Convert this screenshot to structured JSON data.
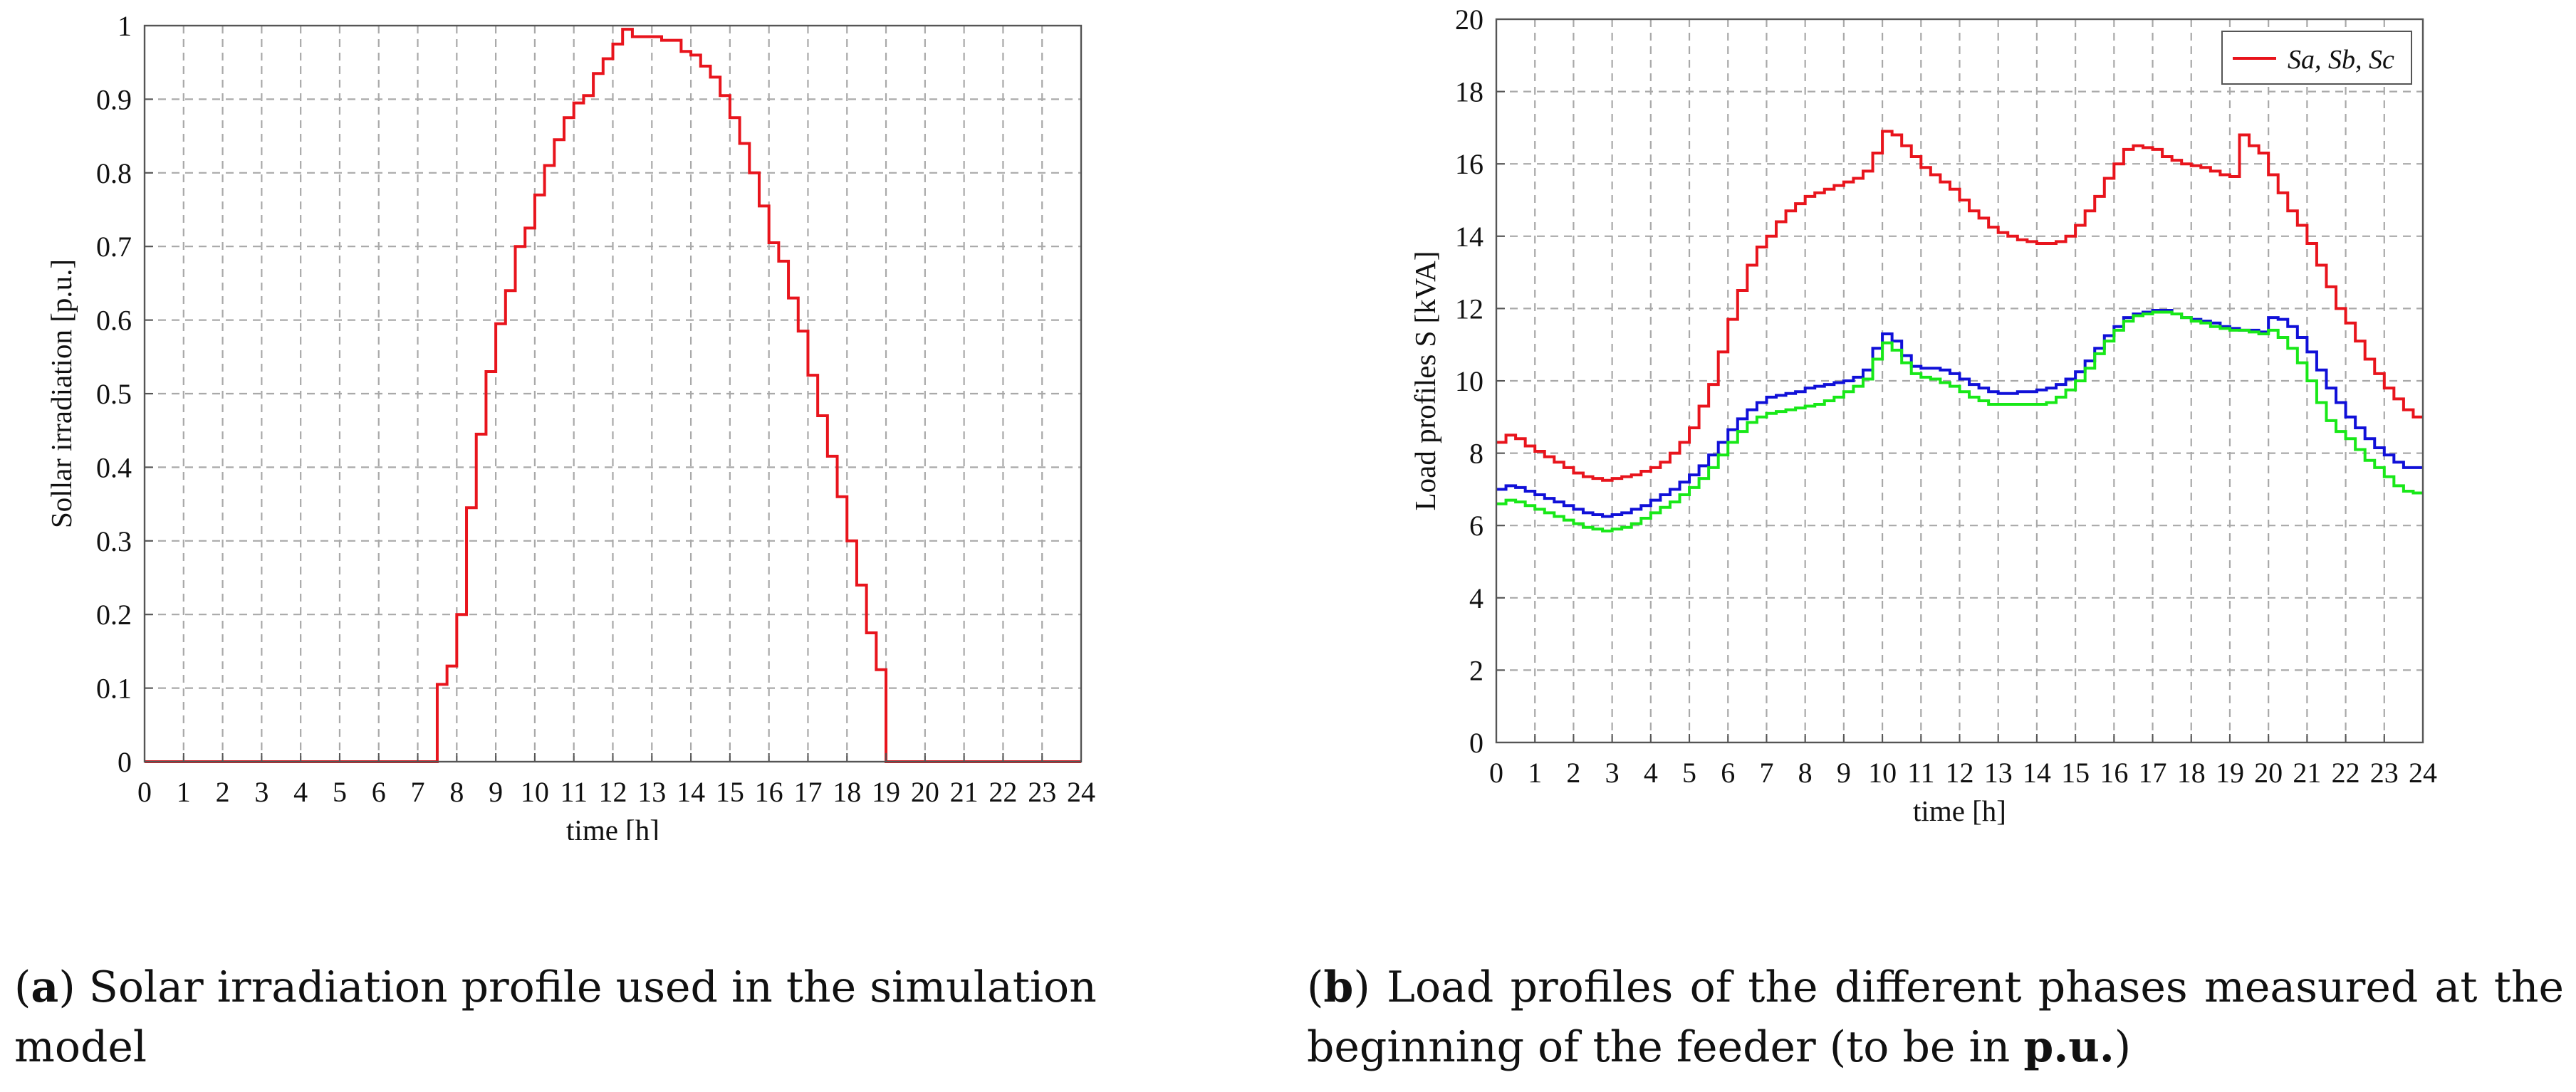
{
  "chart_data": [
    {
      "type": "line",
      "step": true,
      "title": "",
      "xlabel": "time [h]",
      "ylabel": "Sollar irradiation [p.u.]",
      "xlim": [
        0,
        24
      ],
      "ylim": [
        0,
        1
      ],
      "grid": true,
      "xticks": [
        "0",
        "1",
        "2",
        "3",
        "4",
        "5",
        "6",
        "7",
        "8",
        "9",
        "10",
        "11",
        "12",
        "13",
        "14",
        "15",
        "16",
        "17",
        "18",
        "19",
        "20",
        "21",
        "22",
        "23",
        "24"
      ],
      "yticks": [
        "0",
        "0.1",
        "0.2",
        "0.3",
        "0.4",
        "0.5",
        "0.6",
        "0.7",
        "0.8",
        "0.9",
        "1"
      ],
      "series": [
        {
          "name": "Solar irradiation",
          "color": "#e8141c",
          "x": [
            0,
            7.5,
            7.75,
            8,
            8.25,
            8.5,
            8.75,
            9,
            9.25,
            9.5,
            9.75,
            10,
            10.25,
            10.5,
            10.75,
            11,
            11.25,
            11.5,
            11.75,
            12,
            12.25,
            12.5,
            12.75,
            13,
            13.25,
            13.5,
            13.75,
            14,
            14.25,
            14.5,
            14.75,
            15,
            15.25,
            15.5,
            15.75,
            16,
            16.25,
            16.5,
            16.75,
            17,
            17.25,
            17.5,
            17.75,
            18,
            18.25,
            18.5,
            18.75,
            19,
            19.25,
            24
          ],
          "values": [
            0,
            0.105,
            0.13,
            0.2,
            0.345,
            0.445,
            0.53,
            0.595,
            0.64,
            0.7,
            0.725,
            0.77,
            0.81,
            0.845,
            0.875,
            0.895,
            0.905,
            0.935,
            0.955,
            0.975,
            0.995,
            0.985,
            0.985,
            0.985,
            0.98,
            0.98,
            0.965,
            0.96,
            0.945,
            0.93,
            0.905,
            0.875,
            0.84,
            0.8,
            0.755,
            0.705,
            0.68,
            0.63,
            0.585,
            0.525,
            0.47,
            0.415,
            0.36,
            0.3,
            0.24,
            0.175,
            0.125,
            0,
            0,
            0
          ]
        }
      ]
    },
    {
      "type": "line",
      "step": true,
      "title": "",
      "xlabel": "time [h]",
      "ylabel": "Load profiles S [kVA]",
      "xlim": [
        0,
        24
      ],
      "ylim": [
        0,
        20
      ],
      "grid": true,
      "legend_position": "top-right",
      "legend_label": "Sa, Sb, Sc",
      "xticks": [
        "0",
        "1",
        "2",
        "3",
        "4",
        "5",
        "6",
        "7",
        "8",
        "9",
        "10",
        "11",
        "12",
        "13",
        "14",
        "15",
        "16",
        "17",
        "18",
        "19",
        "20",
        "21",
        "22",
        "23",
        "24"
      ],
      "yticks": [
        "0",
        "2",
        "4",
        "6",
        "8",
        "10",
        "12",
        "14",
        "16",
        "18",
        "20"
      ],
      "series": [
        {
          "name": "Sa",
          "color": "#e8141c",
          "x": [
            0,
            0.25,
            0.5,
            0.75,
            1,
            1.25,
            1.5,
            1.75,
            2,
            2.25,
            2.5,
            2.75,
            3,
            3.25,
            3.5,
            3.75,
            4,
            4.25,
            4.5,
            4.75,
            5,
            5.25,
            5.5,
            5.75,
            6,
            6.25,
            6.5,
            6.75,
            7,
            7.25,
            7.5,
            7.75,
            8,
            8.25,
            8.5,
            8.75,
            9,
            9.25,
            9.5,
            9.75,
            10,
            10.25,
            10.5,
            10.75,
            11,
            11.25,
            11.5,
            11.75,
            12,
            12.25,
            12.5,
            12.75,
            13,
            13.25,
            13.5,
            13.75,
            14,
            14.25,
            14.5,
            14.75,
            15,
            15.25,
            15.5,
            15.75,
            16,
            16.25,
            16.5,
            16.75,
            17,
            17.25,
            17.5,
            17.75,
            18,
            18.25,
            18.5,
            18.75,
            19,
            19.25,
            19.5,
            19.75,
            20,
            20.25,
            20.5,
            20.75,
            21,
            21.25,
            21.5,
            21.75,
            22,
            22.25,
            22.5,
            22.75,
            23,
            23.25,
            23.5,
            23.75,
            24
          ],
          "values": [
            8.3,
            8.5,
            8.4,
            8.2,
            8.05,
            7.9,
            7.75,
            7.6,
            7.45,
            7.35,
            7.3,
            7.25,
            7.3,
            7.35,
            7.4,
            7.5,
            7.6,
            7.75,
            8.0,
            8.3,
            8.7,
            9.3,
            9.9,
            10.8,
            11.7,
            12.5,
            13.2,
            13.7,
            14.0,
            14.4,
            14.7,
            14.9,
            15.1,
            15.2,
            15.3,
            15.4,
            15.5,
            15.6,
            15.8,
            16.3,
            16.9,
            16.8,
            16.5,
            16.2,
            15.9,
            15.7,
            15.5,
            15.3,
            15.0,
            14.7,
            14.5,
            14.25,
            14.1,
            14.0,
            13.9,
            13.85,
            13.8,
            13.8,
            13.85,
            14.0,
            14.3,
            14.7,
            15.1,
            15.6,
            16.0,
            16.4,
            16.5,
            16.45,
            16.4,
            16.2,
            16.1,
            16.0,
            15.95,
            15.9,
            15.8,
            15.7,
            15.65,
            16.8,
            16.5,
            16.3,
            15.7,
            15.2,
            14.7,
            14.3,
            13.8,
            13.2,
            12.6,
            12.0,
            11.6,
            11.1,
            10.6,
            10.2,
            9.8,
            9.5,
            9.2,
            9.0,
            9.0
          ]
        },
        {
          "name": "Sb",
          "color": "#1010d8",
          "x": [
            0,
            0.25,
            0.5,
            0.75,
            1,
            1.25,
            1.5,
            1.75,
            2,
            2.25,
            2.5,
            2.75,
            3,
            3.25,
            3.5,
            3.75,
            4,
            4.25,
            4.5,
            4.75,
            5,
            5.25,
            5.5,
            5.75,
            6,
            6.25,
            6.5,
            6.75,
            7,
            7.25,
            7.5,
            7.75,
            8,
            8.25,
            8.5,
            8.75,
            9,
            9.25,
            9.5,
            9.75,
            10,
            10.25,
            10.5,
            10.75,
            11,
            11.25,
            11.5,
            11.75,
            12,
            12.25,
            12.5,
            12.75,
            13,
            13.25,
            13.5,
            13.75,
            14,
            14.25,
            14.5,
            14.75,
            15,
            15.25,
            15.5,
            15.75,
            16,
            16.25,
            16.5,
            16.75,
            17,
            17.25,
            17.5,
            17.75,
            18,
            18.25,
            18.5,
            18.75,
            19,
            19.25,
            19.5,
            19.75,
            20,
            20.25,
            20.5,
            20.75,
            21,
            21.25,
            21.5,
            21.75,
            22,
            22.25,
            22.5,
            22.75,
            23,
            23.25,
            23.5,
            23.75,
            24
          ],
          "values": [
            7.0,
            7.1,
            7.05,
            6.95,
            6.85,
            6.75,
            6.65,
            6.55,
            6.45,
            6.35,
            6.3,
            6.25,
            6.3,
            6.35,
            6.45,
            6.55,
            6.7,
            6.85,
            7.0,
            7.2,
            7.4,
            7.65,
            7.95,
            8.3,
            8.65,
            8.95,
            9.2,
            9.4,
            9.55,
            9.6,
            9.65,
            9.7,
            9.8,
            9.85,
            9.9,
            9.95,
            10.0,
            10.1,
            10.3,
            10.9,
            11.3,
            11.1,
            10.7,
            10.4,
            10.35,
            10.35,
            10.3,
            10.2,
            10.05,
            9.9,
            9.8,
            9.7,
            9.65,
            9.65,
            9.7,
            9.7,
            9.75,
            9.8,
            9.9,
            10.05,
            10.25,
            10.55,
            10.9,
            11.25,
            11.5,
            11.75,
            11.85,
            11.9,
            11.95,
            11.95,
            11.85,
            11.75,
            11.7,
            11.65,
            11.6,
            11.5,
            11.45,
            11.4,
            11.4,
            11.35,
            11.75,
            11.7,
            11.5,
            11.2,
            10.8,
            10.3,
            9.8,
            9.4,
            9.0,
            8.7,
            8.4,
            8.15,
            7.95,
            7.75,
            7.6,
            7.6,
            7.6
          ]
        },
        {
          "name": "Sc",
          "color": "#18e818",
          "x": [
            0,
            0.25,
            0.5,
            0.75,
            1,
            1.25,
            1.5,
            1.75,
            2,
            2.25,
            2.5,
            2.75,
            3,
            3.25,
            3.5,
            3.75,
            4,
            4.25,
            4.5,
            4.75,
            5,
            5.25,
            5.5,
            5.75,
            6,
            6.25,
            6.5,
            6.75,
            7,
            7.25,
            7.5,
            7.75,
            8,
            8.25,
            8.5,
            8.75,
            9,
            9.25,
            9.5,
            9.75,
            10,
            10.25,
            10.5,
            10.75,
            11,
            11.25,
            11.5,
            11.75,
            12,
            12.25,
            12.5,
            12.75,
            13,
            13.25,
            13.5,
            13.75,
            14,
            14.25,
            14.5,
            14.75,
            15,
            15.25,
            15.5,
            15.75,
            16,
            16.25,
            16.5,
            16.75,
            17,
            17.25,
            17.5,
            17.75,
            18,
            18.25,
            18.5,
            18.75,
            19,
            19.25,
            19.5,
            19.75,
            20,
            20.25,
            20.5,
            20.75,
            21,
            21.25,
            21.5,
            21.75,
            22,
            22.25,
            22.5,
            22.75,
            23,
            23.25,
            23.5,
            23.75,
            24
          ],
          "values": [
            6.6,
            6.7,
            6.65,
            6.55,
            6.45,
            6.35,
            6.25,
            6.15,
            6.05,
            5.95,
            5.9,
            5.85,
            5.9,
            5.95,
            6.05,
            6.2,
            6.35,
            6.5,
            6.65,
            6.85,
            7.05,
            7.3,
            7.6,
            7.95,
            8.3,
            8.6,
            8.85,
            9.0,
            9.1,
            9.15,
            9.2,
            9.25,
            9.3,
            9.35,
            9.45,
            9.55,
            9.7,
            9.85,
            10.05,
            10.6,
            11.05,
            10.85,
            10.5,
            10.2,
            10.1,
            10.05,
            9.95,
            9.85,
            9.7,
            9.55,
            9.45,
            9.35,
            9.35,
            9.35,
            9.35,
            9.35,
            9.35,
            9.4,
            9.55,
            9.75,
            10.0,
            10.35,
            10.75,
            11.1,
            11.4,
            11.65,
            11.8,
            11.85,
            11.9,
            11.9,
            11.85,
            11.75,
            11.65,
            11.6,
            11.5,
            11.45,
            11.4,
            11.4,
            11.35,
            11.3,
            11.4,
            11.2,
            10.9,
            10.5,
            10.0,
            9.4,
            8.9,
            8.6,
            8.4,
            8.1,
            7.8,
            7.6,
            7.35,
            7.1,
            6.95,
            6.9,
            6.9
          ]
        }
      ]
    }
  ],
  "captions": {
    "a": {
      "label": "a",
      "text": "Solar irradiation profile used in the simulation model"
    },
    "b": {
      "label": "b",
      "text": "Load profiles of the different phases measured at the beginning of the feeder (to be in ",
      "bold": "p.u.",
      "close": ")"
    }
  }
}
